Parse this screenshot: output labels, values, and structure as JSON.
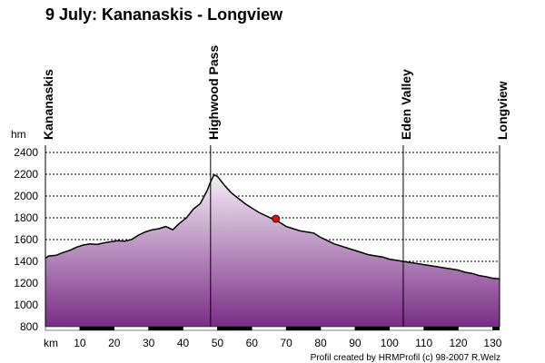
{
  "chart_data": {
    "type": "area",
    "title": "9 July: Kananaskis - Longview",
    "ylabel": "hm",
    "xlabel": "km",
    "xlim": [
      0,
      132
    ],
    "ylim": [
      800,
      2400
    ],
    "yticks": [
      800,
      1000,
      1200,
      1400,
      1600,
      1800,
      2000,
      2200,
      2400
    ],
    "xticks": [
      10,
      20,
      30,
      40,
      50,
      60,
      70,
      80,
      90,
      100,
      110,
      120,
      130
    ],
    "grid": true,
    "places": [
      {
        "name": "Kananaskis",
        "x": 0
      },
      {
        "name": "Highwood Pass",
        "x": 48
      },
      {
        "name": "Eden Valley",
        "x": 104
      },
      {
        "name": "Longview",
        "x": 132
      }
    ],
    "profile": {
      "x": [
        0,
        1,
        3,
        5,
        7,
        9,
        11,
        13,
        15,
        17,
        19,
        21,
        23,
        25,
        27,
        29,
        31,
        33,
        35,
        37,
        39,
        41,
        43,
        45,
        46,
        47,
        48,
        49,
        50,
        52,
        54,
        56,
        58,
        60,
        62,
        64,
        66,
        68,
        70,
        72,
        74,
        76,
        78,
        80,
        82,
        84,
        86,
        88,
        90,
        92,
        94,
        96,
        98,
        100,
        102,
        104,
        106,
        108,
        110,
        112,
        114,
        116,
        118,
        120,
        122,
        124,
        126,
        128,
        130,
        132
      ],
      "elevation": [
        1430,
        1450,
        1455,
        1480,
        1500,
        1530,
        1550,
        1560,
        1555,
        1570,
        1580,
        1590,
        1585,
        1600,
        1640,
        1670,
        1690,
        1700,
        1720,
        1690,
        1750,
        1800,
        1880,
        1930,
        1990,
        2050,
        2130,
        2195,
        2180,
        2100,
        2030,
        1980,
        1930,
        1890,
        1850,
        1820,
        1790,
        1760,
        1720,
        1700,
        1680,
        1670,
        1660,
        1620,
        1590,
        1560,
        1540,
        1520,
        1500,
        1480,
        1460,
        1450,
        1440,
        1420,
        1410,
        1400,
        1390,
        1380,
        1370,
        1360,
        1350,
        1340,
        1330,
        1320,
        1300,
        1290,
        1270,
        1260,
        1245,
        1240
      ]
    }
  },
  "credit": "Profil created by HRMProfil (c) 98-2007 R.Welz",
  "colors": {
    "fill_top": "#f4eef5",
    "fill_bottom": "#7a2d86",
    "line": "#000000",
    "marker": "#e01010"
  }
}
